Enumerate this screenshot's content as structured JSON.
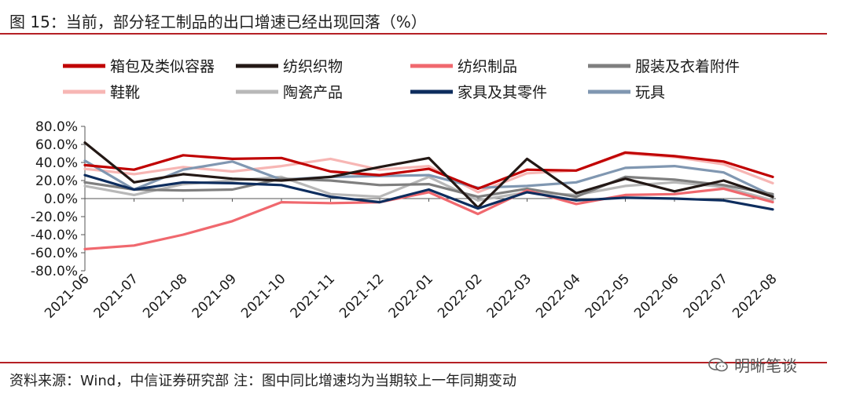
{
  "header": {
    "title": "图 15：当前，部分轻工制品的出口增速已经出现回落（%）"
  },
  "footer": {
    "source": "资料来源：Wind，中信证券研究部  注：图中同比增速均为当期较上一年同期变动"
  },
  "watermark": {
    "text": "明晰笔谈",
    "icon": "wechat-logo-icon"
  },
  "chart_data": {
    "type": "line",
    "categories": [
      "2021-06",
      "2021-07",
      "2021-08",
      "2021-09",
      "2021-10",
      "2021-11",
      "2021-12",
      "2022-01",
      "2022-02",
      "2022-03",
      "2022-04",
      "2022-05",
      "2022-06",
      "2022-07",
      "2022-08"
    ],
    "y_tick_labels": [
      "80.0%",
      "60.0%",
      "40.0%",
      "20.0%",
      "0.0%",
      "-20.0%",
      "-40.0%",
      "-60.0%",
      "-80.0%"
    ],
    "ylim": [
      -80,
      80
    ],
    "y_unit": "%",
    "grid": false,
    "legend_position": "top",
    "series": [
      {
        "name": "箱包及类似容器",
        "color": "#c00000",
        "values": [
          37,
          32,
          48,
          44,
          45,
          30,
          26,
          33,
          11,
          32,
          31,
          51,
          47,
          41,
          24
        ]
      },
      {
        "name": "纺织织物",
        "color": "#231815",
        "values": [
          62,
          18,
          27,
          22,
          20,
          24,
          35,
          45,
          -10,
          44,
          6,
          22,
          8,
          20,
          2
        ]
      },
      {
        "name": "纺织制品",
        "color": "#f0686e",
        "values": [
          -56,
          -52,
          -40,
          -25,
          -4,
          -5,
          -4,
          7,
          -17,
          9,
          -6,
          4,
          5,
          11,
          -4
        ]
      },
      {
        "name": "服装及衣着附件",
        "color": "#7f7f7f",
        "values": [
          18,
          10,
          9,
          10,
          22,
          20,
          15,
          16,
          2,
          11,
          2,
          24,
          21,
          15,
          5
        ]
      },
      {
        "name": "鞋靴",
        "color": "#f7b6b4",
        "values": [
          33,
          27,
          35,
          30,
          36,
          44,
          32,
          36,
          7,
          28,
          31,
          50,
          46,
          38,
          17
        ]
      },
      {
        "name": "陶瓷产品",
        "color": "#b8b8b8",
        "values": [
          14,
          4,
          16,
          20,
          24,
          5,
          2,
          24,
          -2,
          7,
          4,
          14,
          18,
          13,
          -2
        ]
      },
      {
        "name": "家具及其零件",
        "color": "#0d2d5e",
        "values": [
          26,
          10,
          18,
          17,
          15,
          2,
          -4,
          10,
          -11,
          7,
          -2,
          1,
          0,
          -2,
          -12
        ]
      },
      {
        "name": "玩具",
        "color": "#8097b1",
        "values": [
          42,
          10,
          32,
          41,
          21,
          24,
          25,
          26,
          12,
          14,
          18,
          34,
          36,
          29,
          3
        ]
      }
    ]
  }
}
